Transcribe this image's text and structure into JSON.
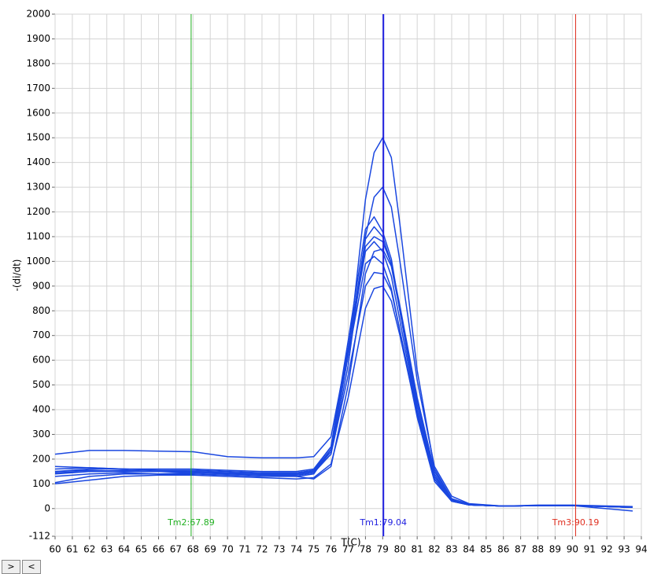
{
  "chart_data": {
    "type": "line",
    "ylabel": "-(di/dt)",
    "xlabel": "T(C)",
    "x": [
      60,
      62,
      64,
      66,
      68,
      70,
      72,
      74,
      75,
      76,
      77,
      78,
      78.5,
      79,
      79.5,
      80,
      81,
      82,
      83,
      84,
      86,
      88,
      90,
      93.5
    ],
    "series": [
      {
        "color": "#1a47e0",
        "values": [
          150,
          155,
          150,
          150,
          150,
          145,
          140,
          140,
          150,
          230,
          620,
          1250,
          1440,
          1500,
          1420,
          1150,
          560,
          160,
          40,
          15,
          10,
          12,
          12,
          5
        ]
      },
      {
        "color": "#1a47e0",
        "values": [
          140,
          150,
          155,
          150,
          145,
          140,
          135,
          135,
          145,
          220,
          580,
          1100,
          1260,
          1300,
          1220,
          1000,
          520,
          170,
          50,
          20,
          10,
          12,
          12,
          5
        ]
      },
      {
        "color": "#1a47e0",
        "values": [
          160,
          165,
          160,
          160,
          160,
          155,
          150,
          150,
          160,
          250,
          680,
          1130,
          1180,
          1120,
          1010,
          800,
          400,
          120,
          30,
          15,
          10,
          12,
          12,
          5
        ]
      },
      {
        "color": "#1a47e0",
        "values": [
          130,
          140,
          145,
          140,
          140,
          135,
          130,
          130,
          140,
          240,
          650,
          1090,
          1140,
          1100,
          990,
          800,
          420,
          130,
          35,
          15,
          10,
          12,
          12,
          5
        ]
      },
      {
        "color": "#1a47e0",
        "values": [
          220,
          235,
          235,
          232,
          230,
          210,
          205,
          205,
          210,
          290,
          650,
          1060,
          1100,
          1080,
          990,
          820,
          450,
          150,
          40,
          18,
          10,
          14,
          14,
          8
        ]
      },
      {
        "color": "#1a47e0",
        "values": [
          150,
          160,
          160,
          155,
          155,
          150,
          145,
          145,
          155,
          250,
          640,
          1040,
          1080,
          1040,
          940,
          760,
          390,
          120,
          30,
          15,
          10,
          12,
          12,
          5
        ]
      },
      {
        "color": "#1a47e0",
        "values": [
          105,
          130,
          140,
          140,
          145,
          140,
          135,
          130,
          120,
          170,
          500,
          950,
          1040,
          1050,
          980,
          800,
          440,
          140,
          35,
          15,
          10,
          12,
          12,
          5
        ]
      },
      {
        "color": "#1a47e0",
        "values": [
          170,
          165,
          160,
          155,
          150,
          145,
          140,
          140,
          150,
          240,
          620,
          990,
          1020,
          990,
          890,
          720,
          370,
          110,
          30,
          15,
          10,
          12,
          12,
          5
        ]
      },
      {
        "color": "#1a47e0",
        "values": [
          145,
          150,
          150,
          150,
          150,
          145,
          140,
          140,
          150,
          220,
          540,
          900,
          955,
          950,
          880,
          720,
          380,
          120,
          30,
          15,
          10,
          12,
          12,
          5
        ]
      },
      {
        "color": "#1a47e0",
        "values": [
          100,
          115,
          130,
          135,
          135,
          130,
          125,
          120,
          125,
          180,
          450,
          810,
          890,
          900,
          840,
          700,
          380,
          130,
          35,
          15,
          10,
          12,
          12,
          -10
        ]
      }
    ],
    "markers": [
      {
        "label": "Tm1:79.04",
        "value": 79.04,
        "color": "#2020e0"
      },
      {
        "label": "Tm2:67.89",
        "value": 67.89,
        "color": "#20b020"
      },
      {
        "label": "Tm3:90.19",
        "value": 90.19,
        "color": "#e03020"
      }
    ],
    "xlim": [
      60,
      94
    ],
    "ylim": [
      -112,
      2000
    ],
    "xticks": [
      60,
      61,
      62,
      63,
      64,
      65,
      66,
      67,
      68,
      69,
      70,
      71,
      72,
      73,
      74,
      75,
      76,
      77,
      78,
      79,
      80,
      81,
      82,
      83,
      84,
      85,
      86,
      87,
      88,
      89,
      90,
      91,
      92,
      93,
      94
    ],
    "yticks": [
      -112,
      0,
      100,
      200,
      300,
      400,
      500,
      600,
      700,
      800,
      900,
      1000,
      1100,
      1200,
      1300,
      1400,
      1500,
      1600,
      1700,
      1800,
      1900,
      2000
    ],
    "grid": true
  },
  "ui": {
    "buttons": [
      ">",
      "<"
    ]
  }
}
